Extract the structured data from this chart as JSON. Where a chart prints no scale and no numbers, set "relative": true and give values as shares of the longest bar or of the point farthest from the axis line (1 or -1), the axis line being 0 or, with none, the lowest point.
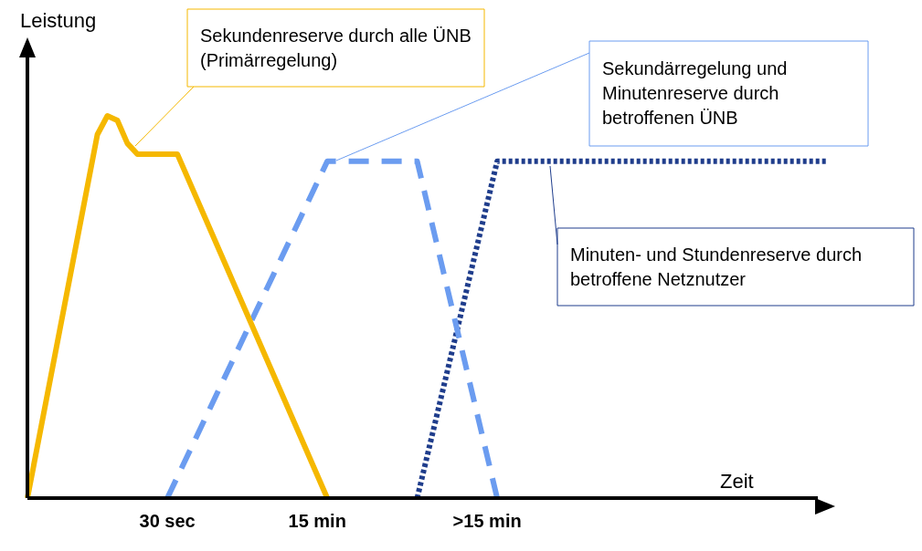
{
  "chart_data": {
    "type": "line",
    "relative": true,
    "xlabel": "Zeit",
    "ylabel": "Leistung",
    "marker": "none",
    "categories": [
      null,
      null,
      null,
      null,
      null,
      null,
      null,
      null,
      null,
      null,
      null,
      null,
      null,
      null,
      "30 sec",
      null,
      null,
      null,
      null,
      null,
      null,
      null,
      null,
      null,
      null,
      null,
      null,
      null,
      null,
      "15 min",
      null,
      null,
      null,
      null,
      null,
      null,
      null,
      null,
      null,
      null,
      null,
      null,
      null,
      null,
      null,
      null,
      ">15 min",
      null,
      null,
      null,
      null,
      null,
      null,
      null,
      null,
      null,
      null,
      null,
      null,
      null,
      null,
      null,
      null,
      null,
      null,
      null,
      null,
      null,
      null,
      null,
      null,
      null,
      null,
      null,
      null,
      null,
      null,
      null,
      null,
      null,
      null
    ],
    "series": [
      {
        "color": "#f5b800",
        "line_style": "solid",
        "values": [
          0,
          null,
          null,
          null,
          null,
          null,
          null,
          0.951,
          1,
          0.988,
          0.928,
          0.9,
          null,
          null,
          null,
          0.9,
          null,
          null,
          null,
          null,
          null,
          null,
          null,
          null,
          null,
          null,
          null,
          null,
          null,
          null,
          0,
          null,
          null,
          null,
          null,
          null,
          null,
          null,
          null,
          null,
          null,
          null,
          null,
          null,
          null,
          null,
          null,
          null,
          null,
          null,
          null,
          null,
          null,
          null,
          null,
          null,
          null,
          null,
          null,
          null,
          null,
          null,
          null,
          null,
          null,
          null,
          null,
          null,
          null,
          null,
          null,
          null,
          null,
          null,
          null,
          null,
          null,
          null,
          null,
          null,
          null
        ]
      },
      {
        "color": "#6b9cf0",
        "line_style": "dashed",
        "values": [
          null,
          null,
          null,
          null,
          null,
          null,
          null,
          null,
          null,
          null,
          null,
          null,
          null,
          null,
          0,
          null,
          null,
          null,
          null,
          null,
          null,
          null,
          null,
          null,
          null,
          null,
          null,
          null,
          null,
          null,
          0.881,
          null,
          null,
          null,
          null,
          null,
          null,
          null,
          null,
          0.881,
          null,
          null,
          null,
          null,
          null,
          null,
          null,
          0,
          null,
          null,
          null,
          null,
          null,
          null,
          null,
          null,
          null,
          null,
          null,
          null,
          null,
          null,
          null,
          null,
          null,
          null,
          null,
          null,
          null,
          null,
          null,
          null,
          null,
          null,
          null,
          null,
          null,
          null,
          null,
          null,
          null
        ]
      },
      {
        "color": "#1f3d8c",
        "line_style": "dotted",
        "values": [
          null,
          null,
          null,
          null,
          null,
          null,
          null,
          null,
          null,
          null,
          null,
          null,
          null,
          null,
          null,
          null,
          null,
          null,
          null,
          null,
          null,
          null,
          null,
          null,
          null,
          null,
          null,
          null,
          null,
          null,
          null,
          null,
          null,
          null,
          null,
          null,
          null,
          null,
          null,
          0,
          null,
          null,
          null,
          null,
          null,
          null,
          null,
          0.881,
          null,
          null,
          null,
          null,
          null,
          null,
          null,
          null,
          null,
          null,
          null,
          null,
          null,
          null,
          null,
          null,
          null,
          null,
          null,
          null,
          null,
          null,
          null,
          null,
          null,
          null,
          null,
          null,
          null,
          null,
          null,
          null,
          0.881
        ]
      }
    ],
    "annotations": [
      "Sekundenreserve durch alle ÜNB (Primärregelung)",
      "Sekundärregelung und Minutenreserve durch betroffenen ÜNB",
      "Minuten- und Stundenreserve durch betroffene Netznutzer"
    ]
  }
}
